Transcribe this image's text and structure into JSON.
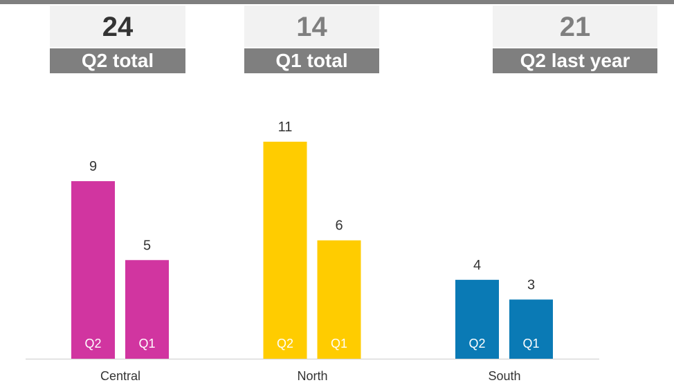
{
  "kpis": [
    {
      "value": 24,
      "label": "Q2 total"
    },
    {
      "value": 14,
      "label": "Q1 total"
    },
    {
      "value": 21,
      "label": "Q2 last year"
    }
  ],
  "chart_data": {
    "type": "bar",
    "categories": [
      "Central",
      "North",
      "South"
    ],
    "colors": [
      "#d135a0",
      "#ffcc00",
      "#0a7ab5"
    ],
    "series": [
      {
        "name": "Q2",
        "values": [
          9,
          11,
          4
        ]
      },
      {
        "name": "Q1",
        "values": [
          5,
          6,
          3
        ]
      }
    ]
  }
}
